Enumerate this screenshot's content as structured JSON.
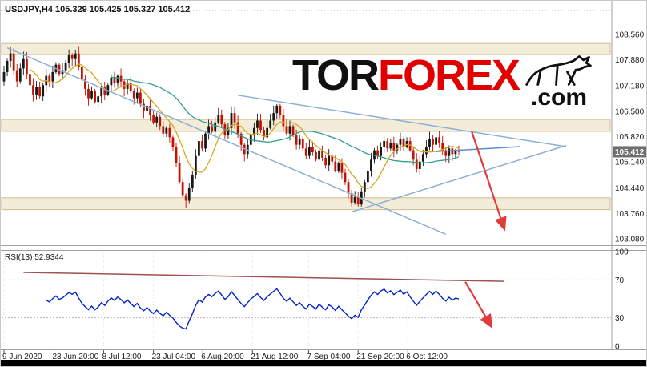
{
  "header": {
    "symbol_info": "USDJPY,H4 105.329 105.425 105.327 105.412"
  },
  "watermark": {
    "tor": "TOR",
    "forex": "FOREX",
    "com": ".com"
  },
  "rsi_panel": {
    "label": "RSI(13) 52.9344"
  },
  "colors": {
    "candle_up": "#181818",
    "candle_down": "#c41200",
    "ma_fast": "#d6a71f",
    "ma_slow": "#2f9e93",
    "trendline": "#8ab0d6",
    "trendline_minor": "#5b8fc9",
    "arrow": "#e23b3b",
    "zone_fill": "#f0e7cf",
    "zone_border": "#cdbd90",
    "rsi_line": "#0022cc",
    "rsi_trendline": "#9e5151",
    "price_tag_bg": "#6e6e6e",
    "watermark_red": "#e00000"
  },
  "chart_data": [
    {
      "type": "candlestick",
      "symbol": "USDJPY",
      "timeframe": "H4",
      "ohlc_quote": {
        "open": 105.329,
        "high": 105.425,
        "low": 105.327,
        "close": 105.412
      },
      "current_price": 105.412,
      "current_price_label": "105.412",
      "ylim": [
        102.95,
        109.29
      ],
      "y_ticks": [
        108.56,
        107.88,
        107.18,
        106.5,
        105.82,
        105.14,
        104.44,
        103.76,
        103.08
      ],
      "y_tick_labels": [
        "108.560",
        "107.880",
        "107.180",
        "106.500",
        "105.820",
        "105.140",
        "104.440",
        "103.760",
        "103.080"
      ],
      "x_tick_labels": [
        "9 Jun 2020",
        "23 Jun 20:00",
        "8 Jul 12:00",
        "23 Jul 04:00",
        "6 Aug 20:00",
        "21 Aug 12:00",
        "7 Sep 04:00",
        "21 Sep 20:00",
        "6 Oct 12:00"
      ],
      "x_tick_slots": [
        0,
        15.4,
        30.7,
        46,
        61.2,
        76.5,
        93.8,
        109,
        124.3
      ],
      "close": [
        107.55,
        107.85,
        108.05,
        107.6,
        107.3,
        107.65,
        107.9,
        107.5,
        107.2,
        106.95,
        107.15,
        106.9,
        107.2,
        107.45,
        107.3,
        107.55,
        107.75,
        107.5,
        107.6,
        107.8,
        108.0,
        107.9,
        108.05,
        107.7,
        107.35,
        107.1,
        106.85,
        107.05,
        106.75,
        106.9,
        107.15,
        106.95,
        107.2,
        107.4,
        107.25,
        107.45,
        107.3,
        107.1,
        107.25,
        107.05,
        106.85,
        107.0,
        106.7,
        106.5,
        106.65,
        106.4,
        106.2,
        106.35,
        106.1,
        105.9,
        106.05,
        105.8,
        105.55,
        105.1,
        104.6,
        104.25,
        104.1,
        104.45,
        104.8,
        105.3,
        105.7,
        105.5,
        105.9,
        106.1,
        105.95,
        106.2,
        106.4,
        106.15,
        105.85,
        106.05,
        106.45,
        106.2,
        105.9,
        105.6,
        105.35,
        105.6,
        105.85,
        106.05,
        106.25,
        106.0,
        105.8,
        106.05,
        106.25,
        106.45,
        106.65,
        106.4,
        106.1,
        105.9,
        106.1,
        105.85,
        105.6,
        105.75,
        105.5,
        105.3,
        105.55,
        105.4,
        105.2,
        105.45,
        105.25,
        105.05,
        105.3,
        105.15,
        104.9,
        105.1,
        104.85,
        104.6,
        104.3,
        104.05,
        104.2,
        104.0,
        104.35,
        104.6,
        104.9,
        105.2,
        105.45,
        105.3,
        105.55,
        105.7,
        105.5,
        105.65,
        105.45,
        105.6,
        105.75,
        105.55,
        105.7,
        105.45,
        105.2,
        104.95,
        105.15,
        105.35,
        105.55,
        105.75,
        105.6,
        105.8,
        105.65,
        105.45,
        105.3,
        105.5,
        105.35,
        105.45,
        105.412
      ],
      "zones": [
        {
          "top": 108.32,
          "bottom": 108.02
        },
        {
          "top": 106.28,
          "bottom": 105.96
        },
        {
          "top": 104.18,
          "bottom": 103.86
        }
      ],
      "trendlines": [
        {
          "from": [
            1,
            108.2
          ],
          "to": [
            136,
            103.2
          ],
          "style": "major"
        },
        {
          "from": [
            72,
            106.93
          ],
          "to": [
            173,
            105.55
          ],
          "style": "major"
        },
        {
          "from": [
            107,
            103.8
          ],
          "to": [
            173,
            105.58
          ],
          "style": "major"
        },
        {
          "from": [
            133,
            105.42
          ],
          "to": [
            159,
            105.55
          ],
          "style": "minor"
        }
      ],
      "arrow": {
        "from": [
          144,
          105.95
        ],
        "to": [
          154,
          103.35
        ]
      },
      "moving_averages": [
        {
          "period": 9,
          "color_key": "ma_fast"
        },
        {
          "period": 34,
          "color_key": "ma_slow"
        }
      ]
    },
    {
      "type": "line",
      "name": "RSI(13)",
      "period": 13,
      "last_value": 52.9344,
      "ylim": [
        0,
        100
      ],
      "levels": [
        70,
        30
      ],
      "y_ticks": [
        100,
        70,
        30,
        0
      ],
      "y_tick_labels": [
        "100",
        "70",
        "30",
        "0"
      ],
      "trendline": {
        "from": [
          6,
          78
        ],
        "to": [
          154,
          68.5
        ]
      },
      "arrow": {
        "from": [
          142,
          68
        ],
        "to": [
          150,
          21
        ]
      }
    }
  ]
}
